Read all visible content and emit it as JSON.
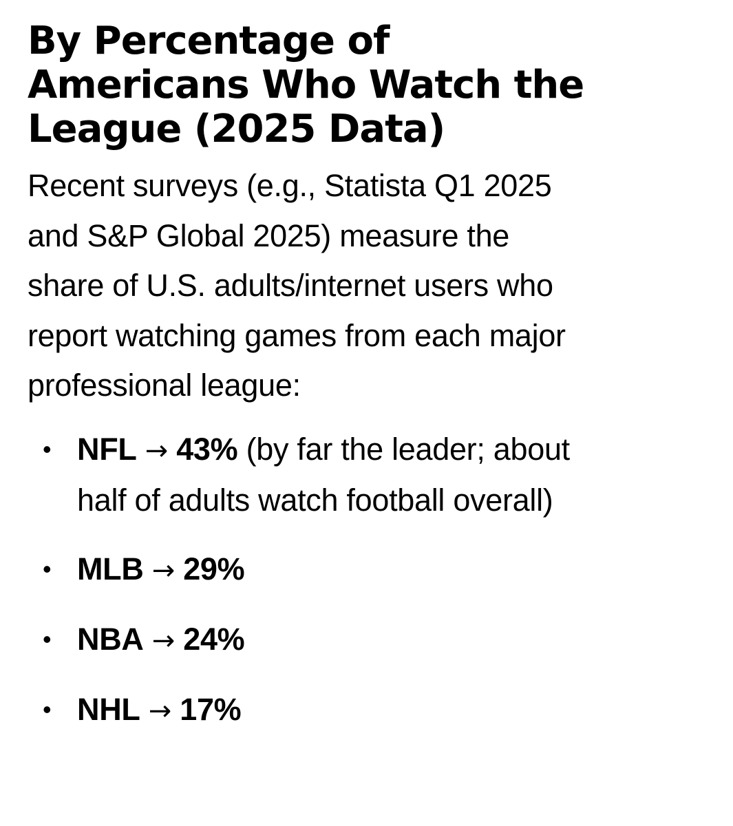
{
  "heading": {
    "lines": [
      "By Percentage of",
      "Americans Who Watch the",
      "League (2025 Data)"
    ]
  },
  "intro": {
    "lines": [
      "Recent surveys (e.g., Statista Q1 2025",
      "and S&P Global 2025) measure the",
      "share of U.S. adults/internet users who",
      "report watching games from each major",
      "professional league:"
    ]
  },
  "bullets": [
    {
      "league": "NFL",
      "arrow": "→",
      "pct": "43%",
      "note_line1": "(by far the leader; about",
      "note_line2": "half of adults watch football overall)"
    },
    {
      "league": "MLB",
      "arrow": "→",
      "pct": "29%"
    },
    {
      "league": "NBA",
      "arrow": "→",
      "pct": "24%"
    },
    {
      "league": "NHL",
      "arrow": "→",
      "pct": "17%"
    }
  ]
}
